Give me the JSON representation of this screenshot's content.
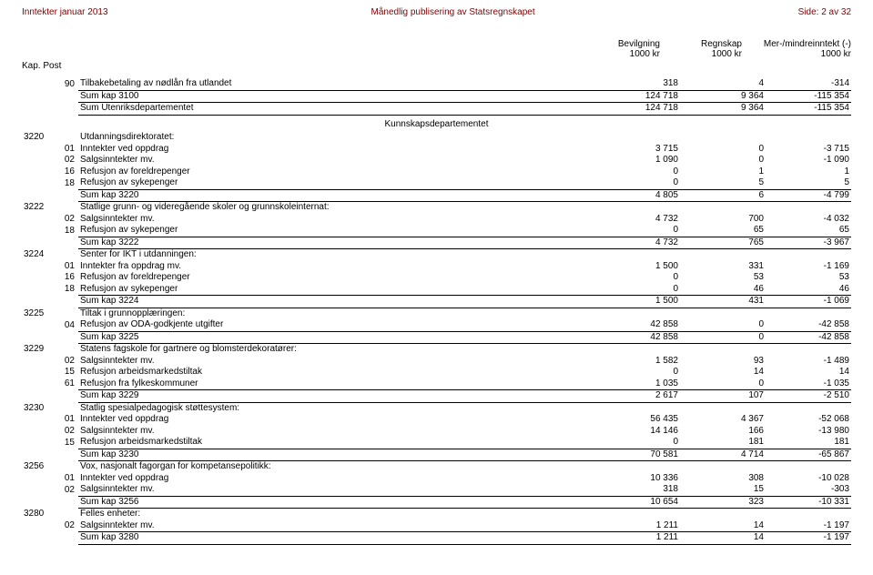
{
  "header": {
    "left": "Inntekter januar 2013",
    "center": "Månedlig publisering av Statsregnskapet",
    "right": "Side: 2 av 32"
  },
  "columns": {
    "kap_post": "Kap. Post",
    "c1_top": "Bevilgning",
    "c1_bot": "1000 kr",
    "c2_top": "Regnskap",
    "c2_bot": "1000 kr",
    "c3_top": "Mer-/mindreinntekt (-)",
    "c3_bot": "1000 kr"
  },
  "section_title": "Kunnskapsdepartementet",
  "rows": [
    {
      "kap": "",
      "post": "90",
      "desc": "Tilbakebetaling av nødlån fra utlandet",
      "v1": "318",
      "v2": "4",
      "v3": "-314",
      "u": true
    },
    {
      "kap": "",
      "post": "",
      "desc": "Sum kap 3100",
      "v1": "124 718",
      "v2": "9 364",
      "v3": "-115 354",
      "u": true
    },
    {
      "kap": "",
      "post": "",
      "desc": "Sum Utenriksdepartementet",
      "v1": "124 718",
      "v2": "9 364",
      "v3": "-115 354",
      "sum": true
    },
    {
      "section": true
    },
    {
      "kap": "3220",
      "post": "",
      "desc": "Utdanningsdirektoratet:",
      "v1": "",
      "v2": "",
      "v3": ""
    },
    {
      "kap": "",
      "post": "01",
      "desc": "Inntekter ved oppdrag",
      "v1": "3 715",
      "v2": "0",
      "v3": "-3 715"
    },
    {
      "kap": "",
      "post": "02",
      "desc": "Salgsinntekter mv.",
      "v1": "1 090",
      "v2": "0",
      "v3": "-1 090"
    },
    {
      "kap": "",
      "post": "16",
      "desc": "Refusjon av foreldrepenger",
      "v1": "0",
      "v2": "1",
      "v3": "1"
    },
    {
      "kap": "",
      "post": "18",
      "desc": "Refusjon av sykepenger",
      "v1": "0",
      "v2": "5",
      "v3": "5",
      "u": true
    },
    {
      "kap": "",
      "post": "",
      "desc": "Sum kap 3220",
      "v1": "4 805",
      "v2": "6",
      "v3": "-4 799",
      "sum": true
    },
    {
      "kap": "3222",
      "post": "",
      "desc": "Statlige grunn- og videregående skoler og grunnskoleinternat:",
      "v1": "",
      "v2": "",
      "v3": ""
    },
    {
      "kap": "",
      "post": "02",
      "desc": "Salgsinntekter mv.",
      "v1": "4 732",
      "v2": "700",
      "v3": "-4 032"
    },
    {
      "kap": "",
      "post": "18",
      "desc": "Refusjon av sykepenger",
      "v1": "0",
      "v2": "65",
      "v3": "65",
      "u": true
    },
    {
      "kap": "",
      "post": "",
      "desc": "Sum kap 3222",
      "v1": "4 732",
      "v2": "765",
      "v3": "-3 967",
      "sum": true
    },
    {
      "kap": "3224",
      "post": "",
      "desc": "Senter for IKT i utdanningen:",
      "v1": "",
      "v2": "",
      "v3": ""
    },
    {
      "kap": "",
      "post": "01",
      "desc": "Inntekter fra oppdrag mv.",
      "v1": "1 500",
      "v2": "331",
      "v3": "-1 169"
    },
    {
      "kap": "",
      "post": "16",
      "desc": "Refusjon av foreldrepenger",
      "v1": "0",
      "v2": "53",
      "v3": "53"
    },
    {
      "kap": "",
      "post": "18",
      "desc": "Refusjon av sykepenger",
      "v1": "0",
      "v2": "46",
      "v3": "46",
      "u": true
    },
    {
      "kap": "",
      "post": "",
      "desc": "Sum kap 3224",
      "v1": "1 500",
      "v2": "431",
      "v3": "-1 069",
      "sum": true
    },
    {
      "kap": "3225",
      "post": "",
      "desc": "Tiltak i grunnopplæringen:",
      "v1": "",
      "v2": "",
      "v3": ""
    },
    {
      "kap": "",
      "post": "04",
      "desc": "Refusjon av ODA-godkjente utgifter",
      "v1": "42 858",
      "v2": "0",
      "v3": "-42 858",
      "u": true
    },
    {
      "kap": "",
      "post": "",
      "desc": "Sum kap 3225",
      "v1": "42 858",
      "v2": "0",
      "v3": "-42 858",
      "sum": true
    },
    {
      "kap": "3229",
      "post": "",
      "desc": "Statens fagskole for gartnere og blomsterdekoratører:",
      "v1": "",
      "v2": "",
      "v3": ""
    },
    {
      "kap": "",
      "post": "02",
      "desc": "Salgsinntekter mv.",
      "v1": "1 582",
      "v2": "93",
      "v3": "-1 489"
    },
    {
      "kap": "",
      "post": "15",
      "desc": "Refusjon arbeidsmarkedstiltak",
      "v1": "0",
      "v2": "14",
      "v3": "14"
    },
    {
      "kap": "",
      "post": "61",
      "desc": "Refusjon fra fylkeskommuner",
      "v1": "1 035",
      "v2": "0",
      "v3": "-1 035",
      "u": true
    },
    {
      "kap": "",
      "post": "",
      "desc": "Sum kap 3229",
      "v1": "2 617",
      "v2": "107",
      "v3": "-2 510",
      "sum": true
    },
    {
      "kap": "3230",
      "post": "",
      "desc": "Statlig spesialpedagogisk støttesystem:",
      "v1": "",
      "v2": "",
      "v3": ""
    },
    {
      "kap": "",
      "post": "01",
      "desc": "Inntekter ved oppdrag",
      "v1": "56 435",
      "v2": "4 367",
      "v3": "-52 068"
    },
    {
      "kap": "",
      "post": "02",
      "desc": "Salgsinntekter mv.",
      "v1": "14 146",
      "v2": "166",
      "v3": "-13 980"
    },
    {
      "kap": "",
      "post": "15",
      "desc": "Refusjon arbeidsmarkedstiltak",
      "v1": "0",
      "v2": "181",
      "v3": "181",
      "u": true
    },
    {
      "kap": "",
      "post": "",
      "desc": "Sum kap 3230",
      "v1": "70 581",
      "v2": "4 714",
      "v3": "-65 867",
      "sum": true
    },
    {
      "kap": "3256",
      "post": "",
      "desc": "Vox, nasjonalt fagorgan for kompetansepolitikk:",
      "v1": "",
      "v2": "",
      "v3": ""
    },
    {
      "kap": "",
      "post": "01",
      "desc": "Inntekter ved oppdrag",
      "v1": "10 336",
      "v2": "308",
      "v3": "-10 028"
    },
    {
      "kap": "",
      "post": "02",
      "desc": "Salgsinntekter mv.",
      "v1": "318",
      "v2": "15",
      "v3": "-303",
      "u": true
    },
    {
      "kap": "",
      "post": "",
      "desc": "Sum kap 3256",
      "v1": "10 654",
      "v2": "323",
      "v3": "-10 331",
      "sum": true
    },
    {
      "kap": "3280",
      "post": "",
      "desc": "Felles enheter:",
      "v1": "",
      "v2": "",
      "v3": ""
    },
    {
      "kap": "",
      "post": "02",
      "desc": "Salgsinntekter mv.",
      "v1": "1 211",
      "v2": "14",
      "v3": "-1 197",
      "u": true
    },
    {
      "kap": "",
      "post": "",
      "desc": "Sum kap 3280",
      "v1": "1 211",
      "v2": "14",
      "v3": "-1 197",
      "sum": true
    }
  ]
}
